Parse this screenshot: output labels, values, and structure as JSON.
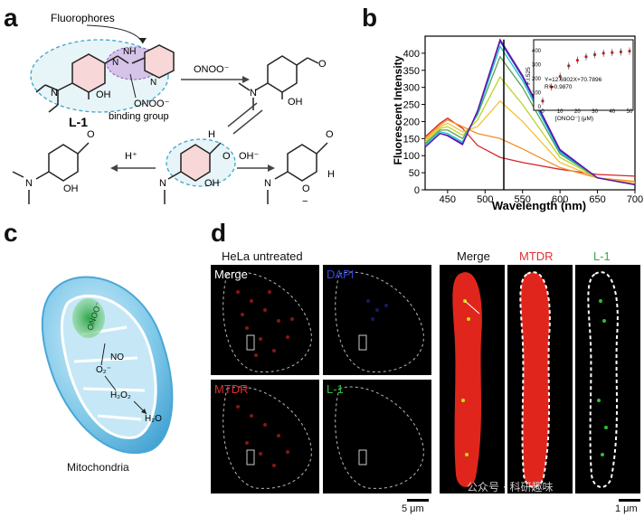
{
  "panels": {
    "a": "a",
    "b": "b",
    "c": "c",
    "d": "d"
  },
  "panel_a": {
    "fluorophores": "Fluorophores",
    "compound": "L-1",
    "binding_group": "ONOO⁻",
    "binding_group2": "binding group",
    "reagent": "ONOO⁻",
    "h_plus": "H⁺",
    "oh_minus": "OH⁻",
    "oh_label": "OH",
    "n_label": "N",
    "nh_label": "NH",
    "h_label": "H",
    "o_label": "O",
    "minus": "−"
  },
  "panel_c": {
    "caption": "Mitochondria",
    "onoo": "ONOO⁻",
    "no": "NO",
    "o2": "O₂⁻",
    "h2o2": "H₂O₂",
    "h2o": "H₂O"
  },
  "panel_d": {
    "header": "HeLa untreated",
    "merge": "Merge",
    "dapi": "DAPI",
    "mtdr": "MTDR",
    "l1": "L-1",
    "merge2": "Merge",
    "mtdr2": "MTDR",
    "l12": "L-1",
    "scale_left": "5 μm",
    "scale_right": "1 μm",
    "watermark": "公众号 · 科研趣味"
  },
  "chart_data": {
    "type": "line",
    "xlabel": "Wavelength (nm)",
    "ylabel": "Fluorescent Intensity",
    "xlim": [
      420,
      700
    ],
    "ylim": [
      0,
      450
    ],
    "xticks": [
      450,
      500,
      550,
      600,
      650,
      700
    ],
    "yticks": [
      0,
      50,
      100,
      150,
      200,
      250,
      300,
      350,
      400
    ],
    "grid": false,
    "series": [
      {
        "color": "#d62728",
        "x": [
          420,
          440,
          450,
          470,
          490,
          520,
          550,
          600,
          650,
          700
        ],
        "values": [
          155,
          195,
          210,
          180,
          130,
          95,
          80,
          60,
          45,
          40
        ]
      },
      {
        "color": "#f28e2b",
        "x": [
          420,
          440,
          450,
          470,
          490,
          520,
          550,
          600,
          650,
          700
        ],
        "values": [
          150,
          190,
          205,
          185,
          165,
          150,
          120,
          65,
          35,
          25
        ]
      },
      {
        "color": "#f1c232",
        "x": [
          420,
          440,
          450,
          470,
          490,
          520,
          550,
          600,
          650,
          700
        ],
        "values": [
          145,
          185,
          195,
          170,
          185,
          260,
          200,
          80,
          35,
          20
        ]
      },
      {
        "color": "#bcd42a",
        "x": [
          420,
          440,
          450,
          470,
          490,
          520,
          550,
          600,
          650,
          700
        ],
        "values": [
          140,
          180,
          185,
          160,
          205,
          330,
          250,
          95,
          35,
          15
        ]
      },
      {
        "color": "#59a14f",
        "x": [
          420,
          440,
          450,
          470,
          490,
          520,
          550,
          600,
          650,
          700
        ],
        "values": [
          135,
          175,
          175,
          150,
          220,
          390,
          300,
          105,
          35,
          15
        ]
      },
      {
        "color": "#17becf",
        "x": [
          420,
          440,
          450,
          470,
          490,
          520,
          550,
          600,
          650,
          700
        ],
        "values": [
          130,
          170,
          165,
          140,
          225,
          420,
          320,
          110,
          35,
          15
        ]
      },
      {
        "color": "#1f3fbf",
        "x": [
          420,
          440,
          450,
          470,
          490,
          520,
          550,
          600,
          650,
          700
        ],
        "values": [
          125,
          165,
          160,
          135,
          230,
          435,
          330,
          115,
          35,
          15
        ]
      },
      {
        "color": "#6a0dad",
        "x": [
          420,
          440,
          450,
          470,
          490,
          520,
          550,
          600,
          650,
          700
        ],
        "values": [
          125,
          165,
          158,
          132,
          232,
          440,
          335,
          118,
          35,
          15
        ]
      }
    ],
    "inset": {
      "xlabel": "[ONOO⁻] (μM)",
      "ylabel": "F.I.525",
      "xticks": [
        0,
        10,
        20,
        30,
        40,
        50
      ],
      "yticks": [
        0,
        100,
        200,
        300,
        400
      ],
      "xlim": [
        0,
        50
      ],
      "ylim": [
        0,
        450
      ],
      "equation": "Y=12.6902X+70.7896",
      "r2": "R²=0.9870",
      "points_x": [
        0,
        5,
        10,
        15,
        20,
        25,
        30,
        35,
        40,
        45,
        50
      ],
      "points_y": [
        40,
        140,
        215,
        290,
        330,
        355,
        370,
        380,
        385,
        390,
        395
      ]
    }
  }
}
